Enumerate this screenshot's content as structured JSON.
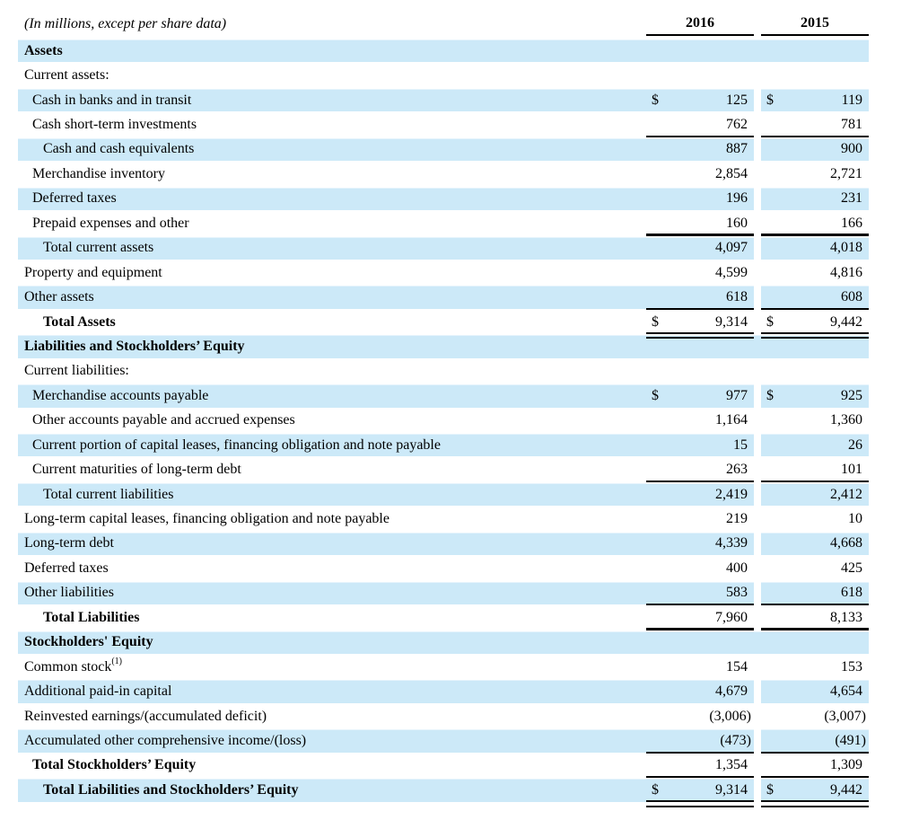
{
  "title": "(In millions, except per share data)",
  "columns": {
    "y2016": "2016",
    "y2015": "2015"
  },
  "colors": {
    "row_highlight": "#cce9f8",
    "text": "#000000",
    "rule": "#000000"
  },
  "rows": [
    {
      "label": "Assets",
      "bold": true,
      "indent": 0,
      "shaded": true,
      "v2016": "",
      "v2015": "",
      "rule": "none"
    },
    {
      "label": "Current assets:",
      "bold": false,
      "indent": 0,
      "shaded": false,
      "v2016": "",
      "v2015": "",
      "rule": "none"
    },
    {
      "label": "Cash in banks and in transit",
      "bold": false,
      "indent": 1,
      "shaded": true,
      "dollar": "$",
      "v2016": "125",
      "v2015": "119",
      "rule": "none"
    },
    {
      "label": "Cash short-term investments",
      "bold": false,
      "indent": 1,
      "shaded": false,
      "v2016": "762",
      "v2015": "781",
      "rule": "single"
    },
    {
      "label": "Cash and cash equivalents",
      "bold": false,
      "indent": 2,
      "shaded": true,
      "v2016": "887",
      "v2015": "900",
      "rule": "none"
    },
    {
      "label": "Merchandise inventory",
      "bold": false,
      "indent": 1,
      "shaded": false,
      "v2016": "2,854",
      "v2015": "2,721",
      "rule": "none"
    },
    {
      "label": "Deferred taxes",
      "bold": false,
      "indent": 1,
      "shaded": true,
      "v2016": "196",
      "v2015": "231",
      "rule": "none"
    },
    {
      "label": "Prepaid expenses and other",
      "bold": false,
      "indent": 1,
      "shaded": false,
      "v2016": "160",
      "v2015": "166",
      "rule": "single"
    },
    {
      "label": "Total current assets",
      "bold": false,
      "indent": 2,
      "shaded": true,
      "v2016": "4,097",
      "v2015": "4,018",
      "rule": "none"
    },
    {
      "label": "Property and equipment",
      "bold": false,
      "indent": 0,
      "shaded": false,
      "v2016": "4,599",
      "v2015": "4,816",
      "rule": "none"
    },
    {
      "label": "Other assets",
      "bold": false,
      "indent": 0,
      "shaded": true,
      "v2016": "618",
      "v2015": "608",
      "rule": "single"
    },
    {
      "label": "Total Assets",
      "bold": true,
      "indent": 2,
      "shaded": false,
      "dollar": "$",
      "v2016": "9,314",
      "v2015": "9,442",
      "rule": "double"
    },
    {
      "label": "Liabilities and Stockholders’ Equity",
      "bold": true,
      "indent": 0,
      "shaded": true,
      "v2016": "",
      "v2015": "",
      "rule": "none"
    },
    {
      "label": "Current liabilities:",
      "bold": false,
      "indent": 0,
      "shaded": false,
      "v2016": "",
      "v2015": "",
      "rule": "none"
    },
    {
      "label": "Merchandise accounts payable",
      "bold": false,
      "indent": 1,
      "shaded": true,
      "dollar": "$",
      "v2016": "977",
      "v2015": "925",
      "rule": "none"
    },
    {
      "label": "Other accounts payable and accrued expenses",
      "bold": false,
      "indent": 1,
      "shaded": false,
      "v2016": "1,164",
      "v2015": "1,360",
      "rule": "none"
    },
    {
      "label": "Current portion of capital leases, financing obligation and note payable",
      "bold": false,
      "indent": 1,
      "shaded": true,
      "v2016": "15",
      "v2015": "26",
      "rule": "none"
    },
    {
      "label": "Current maturities of long-term debt",
      "bold": false,
      "indent": 1,
      "shaded": false,
      "v2016": "263",
      "v2015": "101",
      "rule": "single"
    },
    {
      "label": "Total current liabilities",
      "bold": false,
      "indent": 2,
      "shaded": true,
      "v2016": "2,419",
      "v2015": "2,412",
      "rule": "none"
    },
    {
      "label": "Long-term capital leases, financing obligation and note payable",
      "bold": false,
      "indent": 0,
      "shaded": false,
      "v2016": "219",
      "v2015": "10",
      "rule": "none"
    },
    {
      "label": "Long-term debt",
      "bold": false,
      "indent": 0,
      "shaded": true,
      "v2016": "4,339",
      "v2015": "4,668",
      "rule": "none"
    },
    {
      "label": "Deferred taxes",
      "bold": false,
      "indent": 0,
      "shaded": false,
      "v2016": "400",
      "v2015": "425",
      "rule": "none"
    },
    {
      "label": "Other liabilities",
      "bold": false,
      "indent": 0,
      "shaded": true,
      "v2016": "583",
      "v2015": "618",
      "rule": "single"
    },
    {
      "label": "Total Liabilities",
      "bold": true,
      "indent": 2,
      "shaded": false,
      "v2016": "7,960",
      "v2015": "8,133",
      "rule": "single"
    },
    {
      "label": "Stockholders' Equity",
      "bold": true,
      "indent": 0,
      "shaded": true,
      "v2016": "",
      "v2015": "",
      "rule": "none"
    },
    {
      "label": "Common stock",
      "sup": "(1)",
      "bold": false,
      "indent": 0,
      "shaded": false,
      "v2016": "154",
      "v2015": "153",
      "rule": "none"
    },
    {
      "label": "Additional paid-in capital",
      "bold": false,
      "indent": 0,
      "shaded": true,
      "v2016": "4,679",
      "v2015": "4,654",
      "rule": "none"
    },
    {
      "label": "Reinvested earnings/(accumulated deficit)",
      "bold": false,
      "indent": 0,
      "shaded": false,
      "v2016": "(3,006)",
      "v2015": "(3,007)",
      "rule": "none"
    },
    {
      "label": "Accumulated other comprehensive income/(loss)",
      "bold": false,
      "indent": 0,
      "shaded": true,
      "v2016": "(473)",
      "v2015": "(491)",
      "rule": "single"
    },
    {
      "label": "Total Stockholders’ Equity",
      "bold": true,
      "indent": 1,
      "shaded": false,
      "v2016": "1,354",
      "v2015": "1,309",
      "rule": "double"
    },
    {
      "label": "Total Liabilities and Stockholders’ Equity",
      "bold": true,
      "indent": 2,
      "shaded": true,
      "dollar": "$",
      "v2016": "9,314",
      "v2015": "9,442",
      "rule": "double"
    }
  ]
}
